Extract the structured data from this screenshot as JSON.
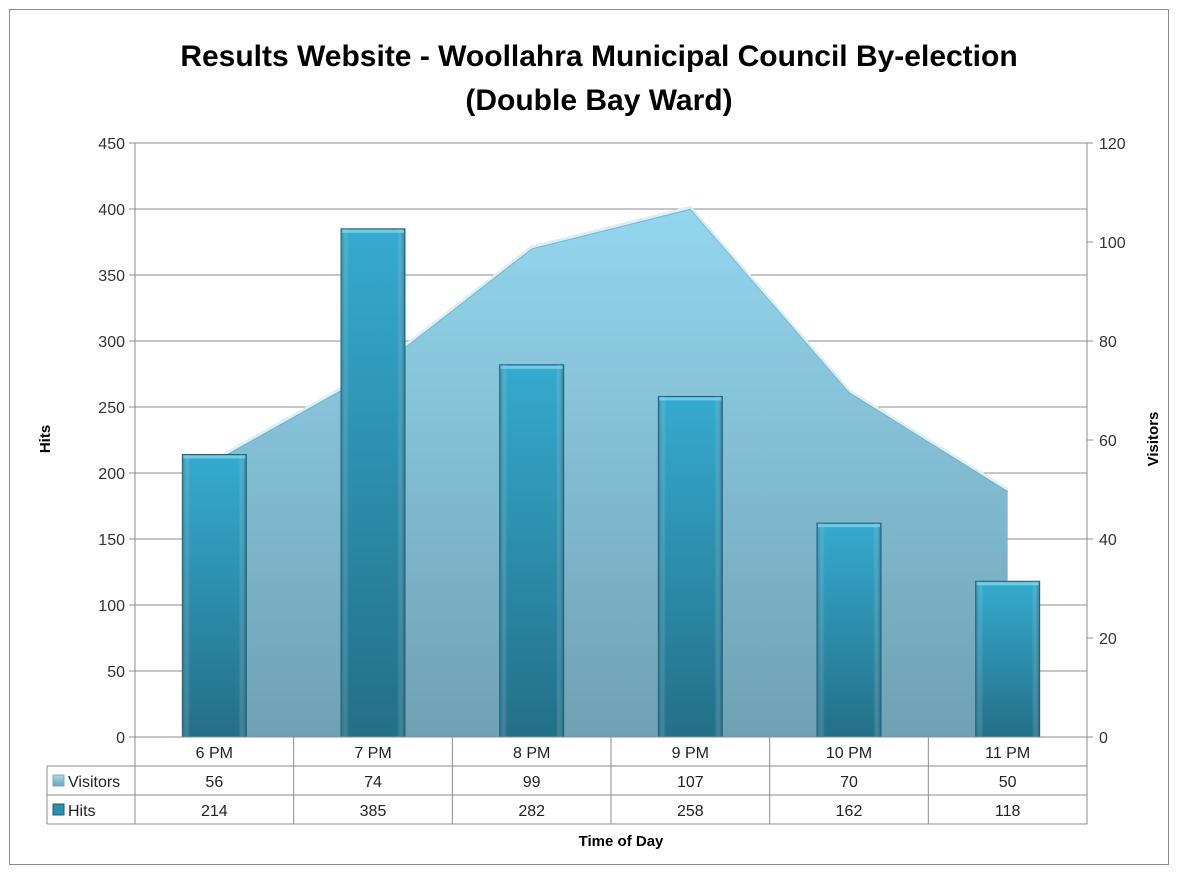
{
  "chart_data": {
    "type": "bar",
    "title_line1": "Results Website - Woollahra Municipal Council By-election",
    "title_line2": "(Double Bay Ward)",
    "xlabel": "Time of Day",
    "ylabel_left": "Hits",
    "ylabel_right": "Visitors",
    "categories": [
      "6 PM",
      "7 PM",
      "8 PM",
      "9 PM",
      "10 PM",
      "11 PM"
    ],
    "ylim_left": [
      0,
      450
    ],
    "yticks_left": [
      0,
      50,
      100,
      150,
      200,
      250,
      300,
      350,
      400,
      450
    ],
    "ylim_right": [
      0,
      120
    ],
    "yticks_right": [
      0,
      20,
      40,
      60,
      80,
      100,
      120
    ],
    "grid": true,
    "legend": "data-table",
    "series": [
      {
        "name": "Visitors",
        "type": "area",
        "axis": "right",
        "values": [
          56,
          74,
          99,
          107,
          70,
          50
        ],
        "color": "#8ecde0"
      },
      {
        "name": "Hits",
        "type": "bar",
        "axis": "left",
        "values": [
          214,
          385,
          282,
          258,
          162,
          118
        ],
        "color": "#2b8fae"
      }
    ]
  }
}
